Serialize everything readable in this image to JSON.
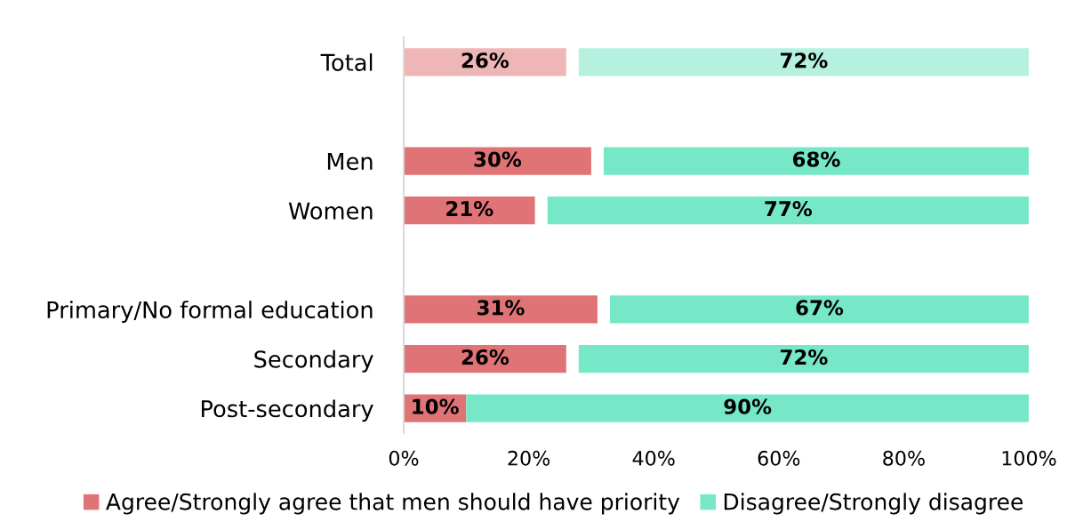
{
  "chart_data": {
    "type": "bar",
    "orientation": "horizontal",
    "categories": [
      "Total",
      null,
      "Men",
      "Women",
      null,
      "Primary/No formal education",
      "Secondary",
      "Post-secondary"
    ],
    "series": [
      {
        "name": "Agree/Strongly agree that men should have priority",
        "color": "#e07375",
        "colors": [
          "#efb6b7",
          "#e07375",
          "#e07375",
          "#e07375",
          "#e07375",
          "#e07375",
          "#e07375",
          "#e07375"
        ],
        "base": [
          0,
          null,
          0,
          0,
          null,
          0,
          0,
          0
        ],
        "values": [
          26,
          null,
          30,
          21,
          null,
          31,
          26,
          10
        ],
        "value_labels": [
          "26%",
          null,
          "30%",
          "21%",
          null,
          "31%",
          "26%",
          "10%"
        ]
      },
      {
        "name": "Disagree/Strongly disagree",
        "color": "#76e8c8",
        "colors": [
          "#b6f1e0",
          "#76e8c8",
          "#76e8c8",
          "#76e8c8",
          "#76e8c8",
          "#76e8c8",
          "#76e8c8",
          "#76e8c8"
        ],
        "base": [
          28,
          null,
          32,
          23,
          null,
          33,
          28,
          10
        ],
        "values": [
          72,
          null,
          68,
          77,
          null,
          67,
          72,
          90
        ],
        "value_labels": [
          "72%",
          null,
          "68%",
          "77%",
          null,
          "67%",
          "72%",
          "90%"
        ]
      }
    ],
    "xlim": [
      0,
      100
    ],
    "xticks": [
      {
        "value": 0,
        "label": "0%"
      },
      {
        "value": 20,
        "label": "20%"
      },
      {
        "value": 40,
        "label": "40%"
      },
      {
        "value": 60,
        "label": "60%"
      },
      {
        "value": 80,
        "label": "80%"
      },
      {
        "value": 100,
        "label": "100%"
      }
    ],
    "grid": false,
    "legend": "bottom"
  }
}
